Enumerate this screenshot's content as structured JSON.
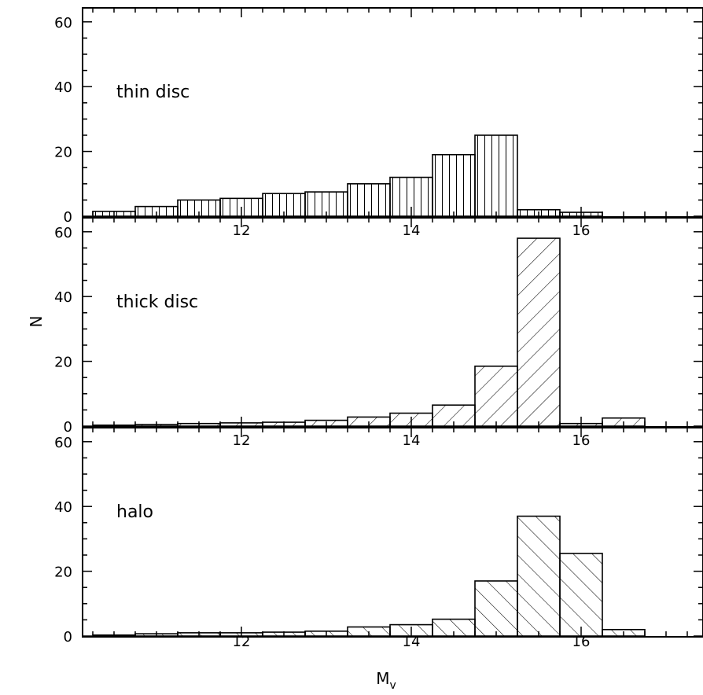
{
  "chart_data": {
    "type": "bar",
    "ylabel": "N",
    "xlabel": "M",
    "xlabel_subscript": "v",
    "xlim": [
      10.1,
      17.4
    ],
    "ylim": [
      0,
      65
    ],
    "x_ticks": [
      "12",
      "14",
      "16"
    ],
    "y_ticks": [
      "0",
      "20",
      "40",
      "60"
    ],
    "bin_width": 0.5,
    "bin_edges": [
      10.25,
      10.75,
      11.25,
      11.75,
      12.25,
      12.75,
      13.25,
      13.75,
      14.25,
      14.75,
      15.25,
      15.75,
      16.25,
      16.75
    ],
    "panels": [
      {
        "label": "thin disc",
        "hatch": "vertical",
        "values": [
          1.5,
          3,
          5,
          5.5,
          7,
          7.5,
          10,
          12,
          19,
          25,
          2,
          1.2,
          0
        ]
      },
      {
        "label": "thick disc",
        "hatch": "diagonal",
        "values": [
          0.3,
          0.5,
          0.8,
          1,
          1.2,
          1.8,
          2.8,
          4,
          6.5,
          18.5,
          58,
          0.8,
          2.5
        ]
      },
      {
        "label": "halo",
        "hatch": "anti-diagonal",
        "values": [
          0.3,
          0.7,
          1,
          1,
          1.2,
          1.5,
          2.8,
          3.5,
          5.2,
          17,
          37,
          25.5,
          2
        ]
      }
    ]
  }
}
